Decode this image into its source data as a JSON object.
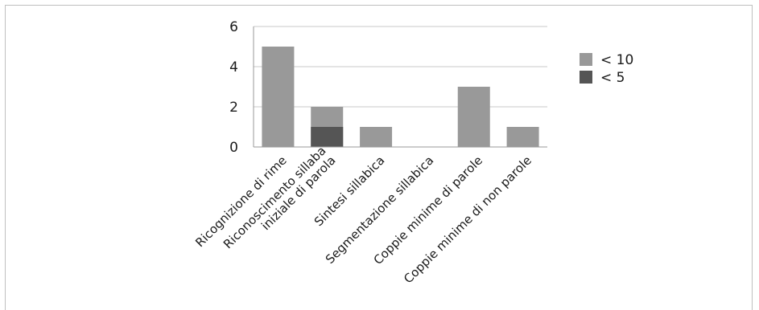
{
  "chart_data": {
    "type": "bar",
    "stacked": false,
    "categories": [
      "Ricognizione di rime",
      "Riconoscimento sillaba iniziale di parola",
      "Sintesi sillabica",
      "Segmentazione sillabica",
      "Coppie minime di parole",
      "Coppie minime di non parole"
    ],
    "category_lines": [
      [
        "Ricognizione di rime"
      ],
      [
        "Riconoscimento sillaba",
        "iniziale di parola"
      ],
      [
        "Sintesi sillabica"
      ],
      [
        "Segmentazione sillabica"
      ],
      [
        "Coppie minime di parole"
      ],
      [
        "Coppie minime di non parole"
      ]
    ],
    "series": [
      {
        "name": "< 10",
        "color": "#999999",
        "values": [
          5,
          2,
          1,
          0,
          3,
          1
        ]
      },
      {
        "name": "< 5",
        "color": "#555555",
        "values": [
          0,
          1,
          0,
          0,
          0,
          0
        ]
      }
    ],
    "ylim": [
      0,
      6
    ],
    "yticks": [
      "0",
      "2",
      "4",
      "6"
    ],
    "grid": true,
    "legend": "right",
    "title": "",
    "xlabel": "",
    "ylabel": ""
  }
}
